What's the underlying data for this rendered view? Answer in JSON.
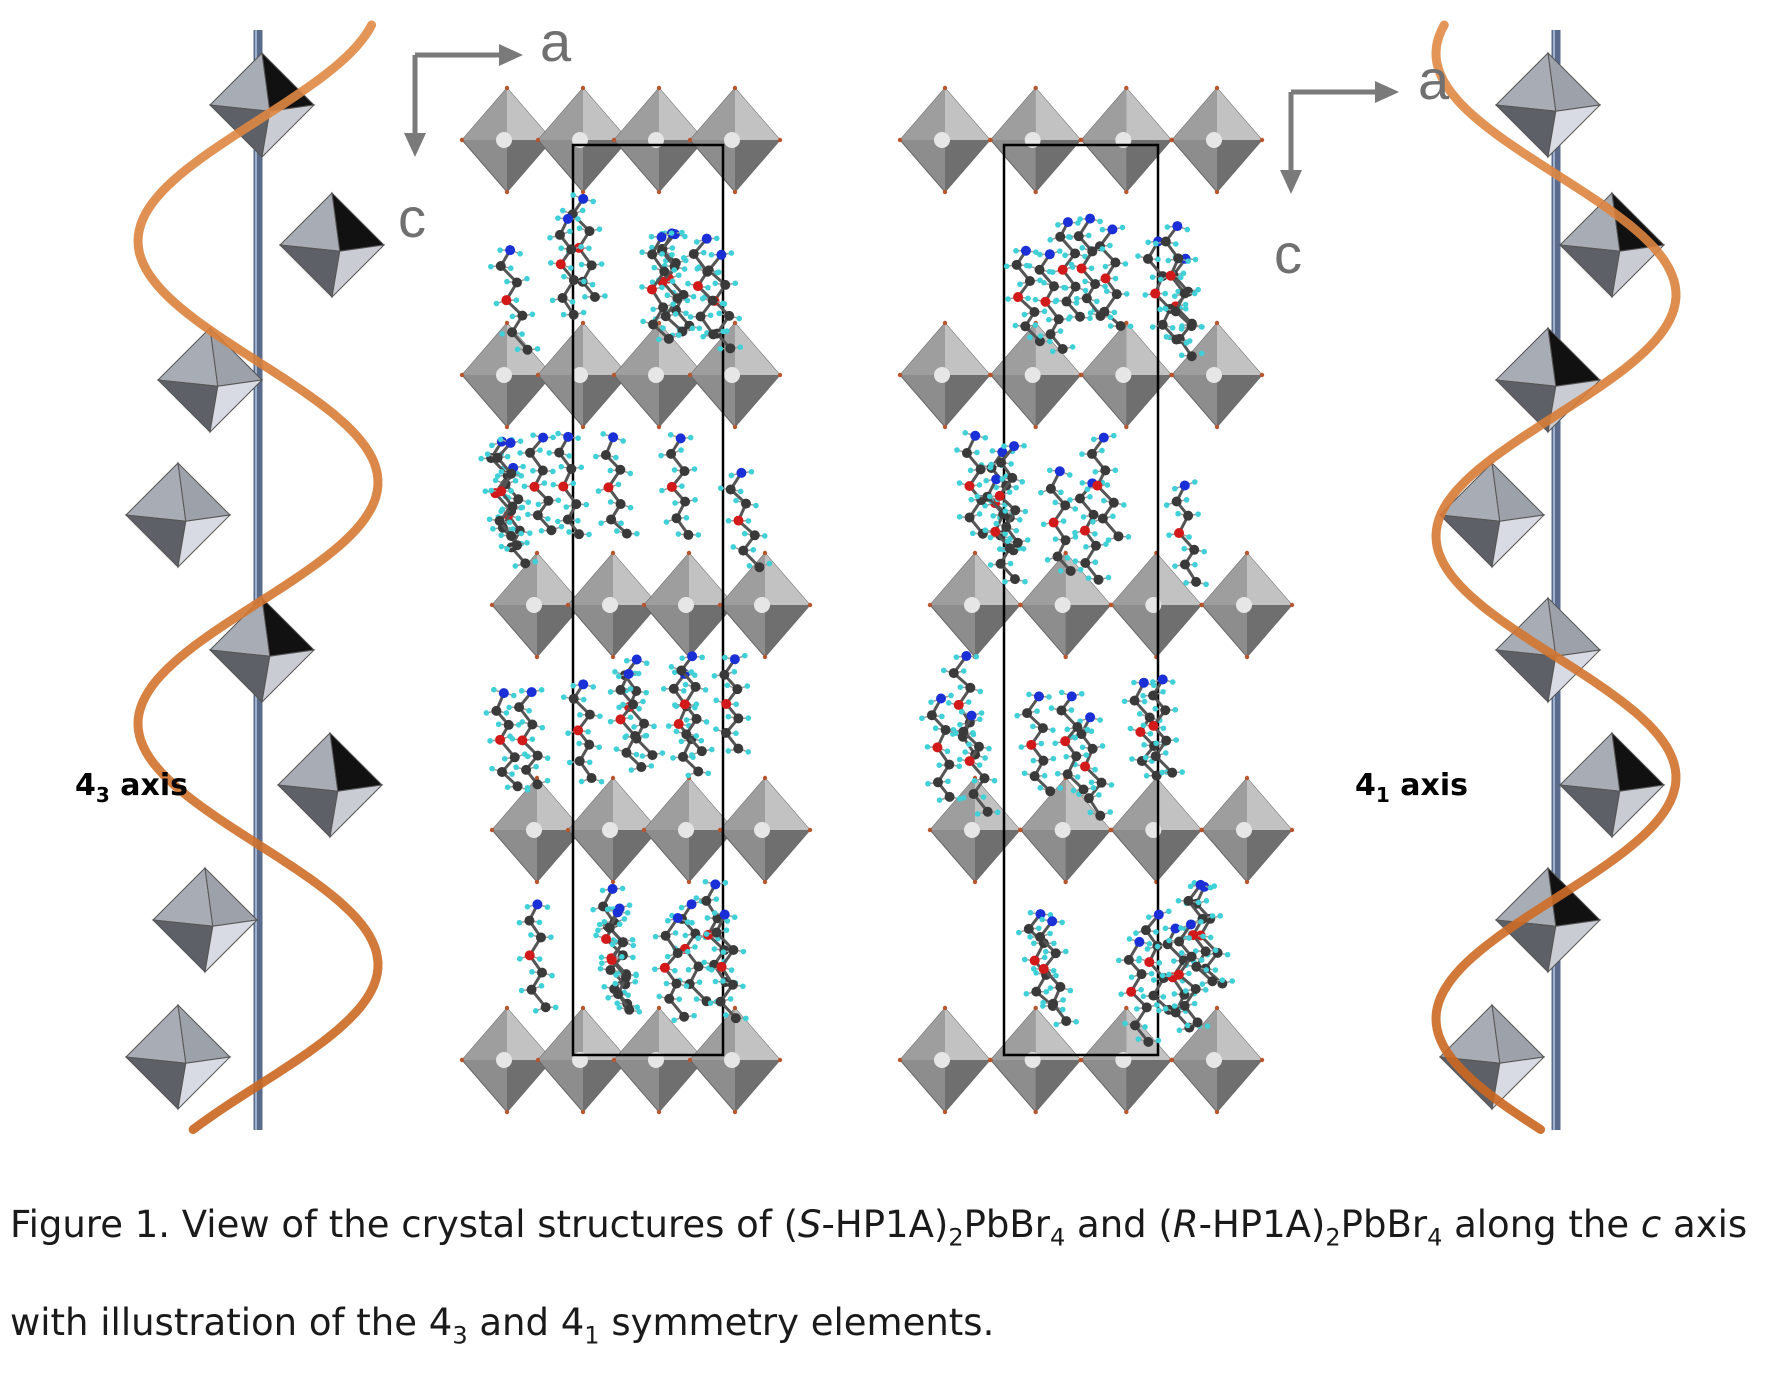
{
  "figure": {
    "left_axis": {
      "digit": "4",
      "sub": "3",
      "word": " axis"
    },
    "right_axis": {
      "digit": "4",
      "sub": "1",
      "word": " axis"
    },
    "direction_labels": {
      "a": "a",
      "c": "c"
    },
    "colors": {
      "helix": "#d9742e",
      "screw_axis": "#5a6b8c",
      "octahedron_light": "#d8dbe3",
      "octahedron_dark": "#5d6066",
      "octahedron_black": "#111111",
      "layer_octahedron": "#8d8d8d",
      "unit_cell": "#000000",
      "carbon": "#3a3a3a",
      "oxygen": "#d21a1a",
      "nitrogen": "#1a2fd6",
      "hydrogen": "#3fd0d8"
    }
  },
  "caption": {
    "label": "Figure 1.",
    "t1": " View of the crystal structures of (",
    "s_italic": "S",
    "t2": "-HP1A)",
    "sub_2a": "2",
    "t3": "PbBr",
    "sub_4a": "4",
    "t4": " and (",
    "r_italic": "R",
    "t5": "-HP1A)",
    "sub_2b": "2",
    "t6": "PbBr",
    "sub_4b": "4",
    "t7": " along the ",
    "c_italic": "c",
    "t8": " axis with illustration of the 4",
    "sub_3": "3",
    "t9": " and 4",
    "sub_1": "1",
    "t10": " symmetry elements."
  }
}
